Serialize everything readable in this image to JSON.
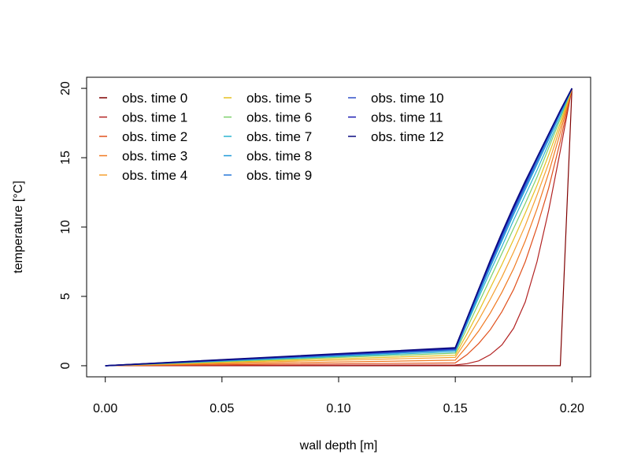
{
  "chart_data": {
    "type": "line",
    "xlabel": "wall depth [m]",
    "ylabel": "temperature [°C]",
    "xlim": [
      -0.008,
      0.208
    ],
    "ylim": [
      -0.8,
      20.8
    ],
    "x_ticks": [
      0.0,
      0.05,
      0.1,
      0.15,
      0.2
    ],
    "x_tick_labels": [
      "0.00",
      "0.05",
      "0.10",
      "0.15",
      "0.20"
    ],
    "y_ticks": [
      0,
      5,
      10,
      15,
      20
    ],
    "y_tick_labels": [
      "0",
      "5",
      "10",
      "15",
      "20"
    ],
    "grid": false,
    "legend_position": "top-left",
    "legend_columns": 3,
    "x": [
      0.0,
      0.15,
      0.155,
      0.16,
      0.165,
      0.17,
      0.175,
      0.18,
      0.185,
      0.19,
      0.195,
      0.2
    ],
    "series": [
      {
        "name": "obs. time 0",
        "color": "#7f0000",
        "values": [
          0.0,
          0.0,
          0.0,
          0.0,
          0.0,
          0.0,
          0.0,
          0.0,
          0.0,
          0.0,
          0.0,
          20.0
        ]
      },
      {
        "name": "obs. time 1",
        "color": "#b22222",
        "values": [
          0.0,
          0.05,
          0.15,
          0.35,
          0.8,
          1.5,
          2.7,
          4.6,
          7.5,
          11.2,
          15.5,
          20.0
        ]
      },
      {
        "name": "obs. time 2",
        "color": "#e0501c",
        "values": [
          0.0,
          0.2,
          0.8,
          1.6,
          2.6,
          3.9,
          5.5,
          7.5,
          10.0,
          12.8,
          16.2,
          20.0
        ]
      },
      {
        "name": "obs. time 3",
        "color": "#f07820",
        "values": [
          0.0,
          0.4,
          1.4,
          2.5,
          3.8,
          5.3,
          7.0,
          9.0,
          11.3,
          13.9,
          16.8,
          20.0
        ]
      },
      {
        "name": "obs. time 4",
        "color": "#f5a030",
        "values": [
          0.0,
          0.6,
          1.9,
          3.3,
          4.8,
          6.4,
          8.2,
          10.1,
          12.3,
          14.6,
          17.2,
          20.0
        ]
      },
      {
        "name": "obs. time 5",
        "color": "#e6c020",
        "values": [
          0.0,
          0.75,
          2.3,
          3.9,
          5.6,
          7.3,
          9.1,
          11.0,
          13.0,
          15.2,
          17.5,
          20.0
        ]
      },
      {
        "name": "obs. time 6",
        "color": "#7ccf6a",
        "values": [
          0.0,
          0.9,
          2.7,
          4.5,
          6.3,
          8.1,
          9.9,
          11.7,
          13.6,
          15.7,
          17.8,
          20.0
        ]
      },
      {
        "name": "obs. time 7",
        "color": "#2cb4d0",
        "values": [
          0.0,
          1.0,
          3.0,
          4.9,
          6.8,
          8.6,
          10.5,
          12.3,
          14.1,
          16.0,
          18.0,
          20.0
        ]
      },
      {
        "name": "obs. time 8",
        "color": "#1e9ad8",
        "values": [
          0.0,
          1.1,
          3.1,
          5.1,
          7.1,
          9.0,
          10.9,
          12.7,
          14.5,
          16.3,
          18.2,
          20.0
        ]
      },
      {
        "name": "obs. time 9",
        "color": "#2878d8",
        "values": [
          0.0,
          1.15,
          3.2,
          5.3,
          7.3,
          9.2,
          11.1,
          12.9,
          14.7,
          16.5,
          18.3,
          20.0
        ]
      },
      {
        "name": "obs. time 10",
        "color": "#3050c8",
        "values": [
          0.0,
          1.2,
          3.3,
          5.4,
          7.4,
          9.4,
          11.3,
          13.1,
          14.9,
          16.6,
          18.3,
          20.0
        ]
      },
      {
        "name": "obs. time 11",
        "color": "#1a1ab0",
        "values": [
          0.0,
          1.25,
          3.4,
          5.5,
          7.5,
          9.5,
          11.4,
          13.2,
          15.0,
          16.7,
          18.4,
          20.0
        ]
      },
      {
        "name": "obs. time 12",
        "color": "#0a0a80",
        "values": [
          0.0,
          1.3,
          3.4,
          5.5,
          7.6,
          9.6,
          11.5,
          13.3,
          15.0,
          16.7,
          18.4,
          20.0
        ]
      }
    ]
  }
}
